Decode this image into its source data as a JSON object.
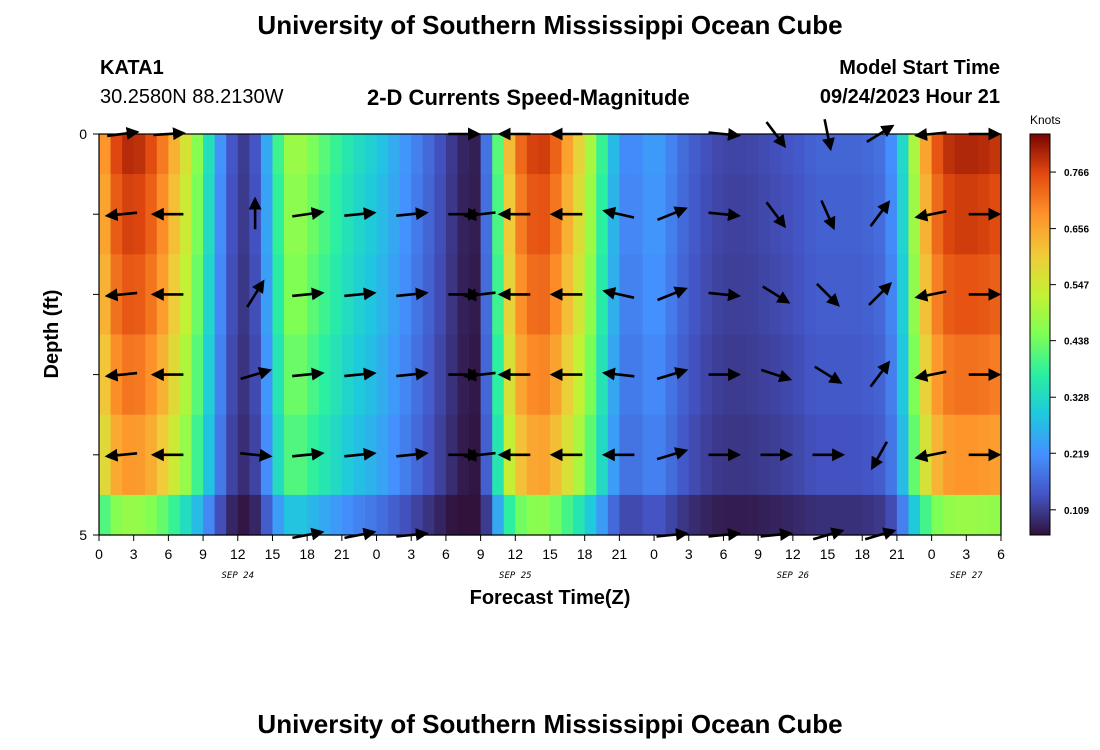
{
  "header": {
    "title": "University of Southern Mississippi Ocean Cube",
    "station_id": "KATA1",
    "station_coords": "30.2580N  88.2130W",
    "chart_title": "2-D Currents Speed-Magnitude",
    "model_start_label": "Model Start Time",
    "model_start_value": "09/24/2023 Hour 21",
    "footer_title": "University of Southern Mississippi Ocean Cube"
  },
  "chart_data": {
    "type": "heatmap",
    "title": "2-D Currents Speed-Magnitude",
    "xlabel": "Forecast Time(Z)",
    "ylabel": "Depth (ft)",
    "xlim": [
      0,
      78
    ],
    "ylim": [
      0,
      5
    ],
    "y_ticks": [
      0,
      1,
      2,
      3,
      4,
      5
    ],
    "y_tick_labels": [
      "0",
      "",
      "",
      "",
      "",
      "5"
    ],
    "x_tick_hours": [
      0,
      3,
      6,
      9,
      12,
      15,
      18,
      21,
      24,
      27,
      30,
      33,
      36,
      39,
      42,
      45,
      48,
      51,
      54,
      57,
      60,
      63,
      66,
      69,
      72,
      75,
      78
    ],
    "x_tick_labels": [
      "0",
      "3",
      "6",
      "9",
      "12",
      "15",
      "18",
      "21",
      "0",
      "3",
      "6",
      "9",
      "12",
      "15",
      "18",
      "21",
      "0",
      "3",
      "6",
      "9",
      "12",
      "15",
      "18",
      "21",
      "0",
      "3",
      "6"
    ],
    "date_labels": [
      {
        "hour": 12,
        "label": "SEP 24"
      },
      {
        "hour": 36,
        "label": "SEP 25"
      },
      {
        "hour": 60,
        "label": "SEP 26"
      },
      {
        "hour": 75,
        "label": "SEP 27"
      }
    ],
    "colorbar": {
      "unit": "Knots",
      "min": 0.06,
      "max": 0.84,
      "ticks": [
        0.109,
        0.219,
        0.328,
        0.438,
        0.547,
        0.656,
        0.766
      ],
      "tick_labels": [
        "0.109",
        "0.219",
        "0.328",
        "0.438",
        "0.547",
        "0.656",
        "0.766"
      ]
    },
    "speed_profile_hours": [
      0,
      1,
      2,
      3,
      4,
      5,
      6,
      7,
      8,
      9,
      10,
      11,
      12,
      13,
      14,
      15,
      16,
      17,
      18,
      20,
      22,
      24,
      26,
      28,
      30,
      32,
      33,
      34,
      35,
      36,
      37,
      38,
      39,
      40,
      42,
      44,
      45,
      46,
      47,
      48,
      49,
      50,
      52,
      54,
      56,
      58,
      60,
      62,
      64,
      66,
      68,
      69,
      70,
      71,
      72,
      73,
      74,
      76,
      78
    ],
    "speed_profile_knots": [
      0.62,
      0.74,
      0.79,
      0.8,
      0.78,
      0.74,
      0.68,
      0.6,
      0.52,
      0.4,
      0.28,
      0.16,
      0.12,
      0.1,
      0.18,
      0.32,
      0.46,
      0.5,
      0.46,
      0.4,
      0.34,
      0.3,
      0.24,
      0.18,
      0.12,
      0.07,
      0.08,
      0.28,
      0.55,
      0.7,
      0.76,
      0.78,
      0.77,
      0.7,
      0.55,
      0.33,
      0.22,
      0.2,
      0.22,
      0.24,
      0.22,
      0.18,
      0.14,
      0.12,
      0.12,
      0.13,
      0.14,
      0.16,
      0.16,
      0.16,
      0.18,
      0.25,
      0.4,
      0.6,
      0.72,
      0.78,
      0.8,
      0.8,
      0.78
    ],
    "depth_rows": [
      0,
      1,
      2,
      3,
      4,
      5
    ],
    "depth_factor": [
      1.0,
      0.97,
      0.94,
      0.9,
      0.85,
      0.6
    ],
    "vectors": [
      {
        "hour": 2,
        "depth": 0,
        "u": 0.8,
        "v": 0.1
      },
      {
        "hour": 2,
        "depth": 1,
        "u": -1.0,
        "v": -0.1
      },
      {
        "hour": 2,
        "depth": 2,
        "u": -1.0,
        "v": -0.1
      },
      {
        "hour": 2,
        "depth": 3,
        "u": -1.0,
        "v": -0.1
      },
      {
        "hour": 2,
        "depth": 4,
        "u": -1.0,
        "v": -0.1
      },
      {
        "hour": 6,
        "depth": 0,
        "u": 0.8,
        "v": 0.05
      },
      {
        "hour": 6,
        "depth": 1,
        "u": -1.0,
        "v": 0.0
      },
      {
        "hour": 6,
        "depth": 2,
        "u": -1.0,
        "v": 0.0
      },
      {
        "hour": 6,
        "depth": 3,
        "u": -1.0,
        "v": 0.0
      },
      {
        "hour": 6,
        "depth": 4,
        "u": -1.0,
        "v": 0.0
      },
      {
        "hour": 13.5,
        "depth": 1,
        "u": 0.0,
        "v": 1.0
      },
      {
        "hour": 13.5,
        "depth": 2,
        "u": 0.5,
        "v": 0.8
      },
      {
        "hour": 13.5,
        "depth": 3,
        "u": 1.0,
        "v": 0.3
      },
      {
        "hour": 13.5,
        "depth": 4,
        "u": 1.0,
        "v": -0.1
      },
      {
        "hour": 18,
        "depth": 1,
        "u": 1.0,
        "v": 0.15
      },
      {
        "hour": 18,
        "depth": 2,
        "u": 1.0,
        "v": 0.1
      },
      {
        "hour": 18,
        "depth": 3,
        "u": 1.0,
        "v": 0.1
      },
      {
        "hour": 18,
        "depth": 4,
        "u": 1.0,
        "v": 0.1
      },
      {
        "hour": 18,
        "depth": 5,
        "u": 1.0,
        "v": 0.2
      },
      {
        "hour": 22.5,
        "depth": 1,
        "u": 1.0,
        "v": 0.1
      },
      {
        "hour": 22.5,
        "depth": 2,
        "u": 1.0,
        "v": 0.1
      },
      {
        "hour": 22.5,
        "depth": 3,
        "u": 1.0,
        "v": 0.1
      },
      {
        "hour": 22.5,
        "depth": 4,
        "u": 1.0,
        "v": 0.1
      },
      {
        "hour": 22.5,
        "depth": 5,
        "u": 1.0,
        "v": 0.2
      },
      {
        "hour": 27,
        "depth": 1,
        "u": 1.0,
        "v": 0.1
      },
      {
        "hour": 27,
        "depth": 2,
        "u": 1.0,
        "v": 0.1
      },
      {
        "hour": 27,
        "depth": 3,
        "u": 1.0,
        "v": 0.1
      },
      {
        "hour": 27,
        "depth": 4,
        "u": 1.0,
        "v": 0.1
      },
      {
        "hour": 27,
        "depth": 5,
        "u": 1.0,
        "v": 0.1
      },
      {
        "hour": 31.5,
        "depth": 0,
        "u": 1.0,
        "v": 0.0
      },
      {
        "hour": 31.5,
        "depth": 1,
        "u": 1.0,
        "v": 0.0
      },
      {
        "hour": 31.5,
        "depth": 2,
        "u": 1.0,
        "v": 0.0
      },
      {
        "hour": 31.5,
        "depth": 3,
        "u": 1.0,
        "v": 0.0
      },
      {
        "hour": 31.5,
        "depth": 4,
        "u": 1.0,
        "v": 0.0
      },
      {
        "hour": 33,
        "depth": 1,
        "u": -0.9,
        "v": -0.1
      },
      {
        "hour": 33,
        "depth": 2,
        "u": -0.9,
        "v": -0.1
      },
      {
        "hour": 33,
        "depth": 3,
        "u": -0.9,
        "v": -0.1
      },
      {
        "hour": 33,
        "depth": 4,
        "u": -0.9,
        "v": -0.1
      },
      {
        "hour": 36,
        "depth": 0,
        "u": -1.0,
        "v": 0.0
      },
      {
        "hour": 36,
        "depth": 1,
        "u": -1.0,
        "v": 0.0
      },
      {
        "hour": 36,
        "depth": 2,
        "u": -1.0,
        "v": 0.0
      },
      {
        "hour": 36,
        "depth": 3,
        "u": -1.0,
        "v": 0.0
      },
      {
        "hour": 36,
        "depth": 4,
        "u": -1.0,
        "v": 0.0
      },
      {
        "hour": 40.5,
        "depth": 0,
        "u": -1.0,
        "v": 0.0
      },
      {
        "hour": 40.5,
        "depth": 1,
        "u": -1.0,
        "v": 0.0
      },
      {
        "hour": 40.5,
        "depth": 2,
        "u": -1.0,
        "v": 0.0
      },
      {
        "hour": 40.5,
        "depth": 3,
        "u": -1.0,
        "v": 0.0
      },
      {
        "hour": 40.5,
        "depth": 4,
        "u": -1.0,
        "v": 0.0
      },
      {
        "hour": 45,
        "depth": 1,
        "u": -0.9,
        "v": 0.2
      },
      {
        "hour": 45,
        "depth": 2,
        "u": -0.9,
        "v": 0.2
      },
      {
        "hour": 45,
        "depth": 3,
        "u": -0.9,
        "v": 0.1
      },
      {
        "hour": 45,
        "depth": 4,
        "u": -0.9,
        "v": 0.0
      },
      {
        "hour": 49.5,
        "depth": 1,
        "u": 1.0,
        "v": 0.4
      },
      {
        "hour": 49.5,
        "depth": 2,
        "u": 1.0,
        "v": 0.4
      },
      {
        "hour": 49.5,
        "depth": 3,
        "u": 1.0,
        "v": 0.3
      },
      {
        "hour": 49.5,
        "depth": 4,
        "u": 1.0,
        "v": 0.3
      },
      {
        "hour": 49.5,
        "depth": 5,
        "u": 1.0,
        "v": 0.1
      },
      {
        "hour": 54,
        "depth": 0,
        "u": 1.0,
        "v": -0.1
      },
      {
        "hour": 54,
        "depth": 1,
        "u": 1.0,
        "v": -0.1
      },
      {
        "hour": 54,
        "depth": 2,
        "u": 1.0,
        "v": -0.1
      },
      {
        "hour": 54,
        "depth": 3,
        "u": 1.0,
        "v": 0.0
      },
      {
        "hour": 54,
        "depth": 4,
        "u": 1.0,
        "v": 0.0
      },
      {
        "hour": 54,
        "depth": 5,
        "u": 1.0,
        "v": 0.1
      },
      {
        "hour": 58.5,
        "depth": 0,
        "u": 0.6,
        "v": -0.8
      },
      {
        "hour": 58.5,
        "depth": 1,
        "u": 0.6,
        "v": -0.8
      },
      {
        "hour": 58.5,
        "depth": 2,
        "u": 0.8,
        "v": -0.5
      },
      {
        "hour": 58.5,
        "depth": 3,
        "u": 0.9,
        "v": -0.3
      },
      {
        "hour": 58.5,
        "depth": 4,
        "u": 1.0,
        "v": 0.0
      },
      {
        "hour": 58.5,
        "depth": 5,
        "u": 1.0,
        "v": 0.1
      },
      {
        "hour": 63,
        "depth": 0,
        "u": 0.2,
        "v": -1.0
      },
      {
        "hour": 63,
        "depth": 1,
        "u": 0.4,
        "v": -0.9
      },
      {
        "hour": 63,
        "depth": 2,
        "u": 0.7,
        "v": -0.7
      },
      {
        "hour": 63,
        "depth": 3,
        "u": 0.8,
        "v": -0.5
      },
      {
        "hour": 63,
        "depth": 4,
        "u": 1.0,
        "v": 0.0
      },
      {
        "hour": 63,
        "depth": 5,
        "u": 1.0,
        "v": 0.3
      },
      {
        "hour": 67.5,
        "depth": 0,
        "u": 0.8,
        "v": 0.5
      },
      {
        "hour": 67.5,
        "depth": 1,
        "u": 0.6,
        "v": 0.8
      },
      {
        "hour": 67.5,
        "depth": 2,
        "u": 0.7,
        "v": 0.7
      },
      {
        "hour": 67.5,
        "depth": 3,
        "u": 0.6,
        "v": 0.8
      },
      {
        "hour": 67.5,
        "depth": 4,
        "u": -0.5,
        "v": -0.9
      },
      {
        "hour": 67.5,
        "depth": 5,
        "u": 1.0,
        "v": 0.3
      },
      {
        "hour": 72,
        "depth": 0,
        "u": -1.0,
        "v": -0.1
      },
      {
        "hour": 72,
        "depth": 1,
        "u": -1.0,
        "v": -0.2
      },
      {
        "hour": 72,
        "depth": 2,
        "u": -1.0,
        "v": -0.2
      },
      {
        "hour": 72,
        "depth": 3,
        "u": -1.0,
        "v": -0.2
      },
      {
        "hour": 72,
        "depth": 4,
        "u": -1.0,
        "v": -0.2
      },
      {
        "hour": 76.5,
        "depth": 0,
        "u": 1.0,
        "v": 0.0
      },
      {
        "hour": 76.5,
        "depth": 1,
        "u": 1.0,
        "v": 0.0
      },
      {
        "hour": 76.5,
        "depth": 2,
        "u": 1.0,
        "v": 0.0
      },
      {
        "hour": 76.5,
        "depth": 3,
        "u": 1.0,
        "v": 0.0
      },
      {
        "hour": 76.5,
        "depth": 4,
        "u": 1.0,
        "v": 0.0
      }
    ]
  }
}
